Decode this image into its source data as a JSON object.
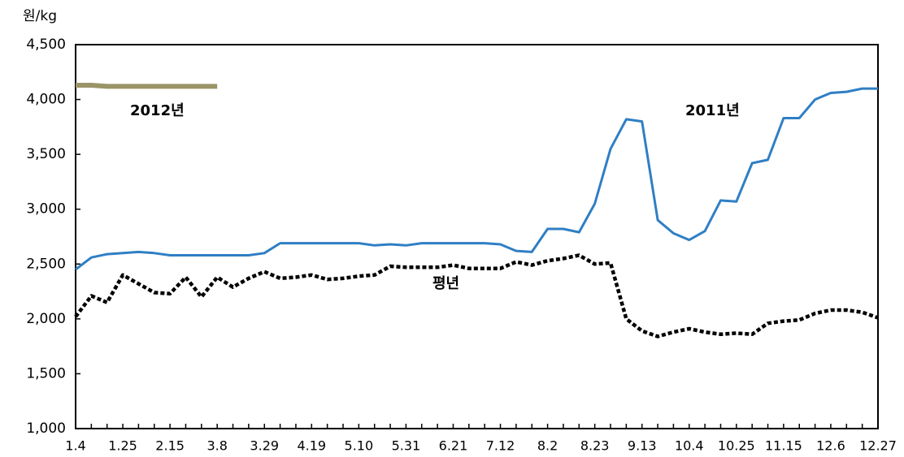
{
  "chart_data": {
    "type": "line",
    "y_unit": "원/kg",
    "categories": [
      "1.4",
      null,
      null,
      "1.25",
      null,
      null,
      "2.15",
      null,
      null,
      "3.8",
      null,
      null,
      "3.29",
      null,
      null,
      "4.19",
      null,
      null,
      "5.10",
      null,
      null,
      "5.31",
      null,
      null,
      "6.21",
      null,
      null,
      "7.12",
      null,
      null,
      "8.2",
      null,
      null,
      "8.23",
      null,
      null,
      "9.13",
      null,
      null,
      "10.4",
      null,
      null,
      "10.25",
      null,
      null,
      "11.15",
      null,
      null,
      "12.6",
      null,
      null,
      "12.27"
    ],
    "series": [
      {
        "name": "2012년",
        "color": "#9a9468",
        "dash": false,
        "values": [
          4130,
          4130,
          4120,
          4120,
          4120,
          4120,
          4120,
          4120,
          4120,
          4120,
          null,
          null,
          null,
          null,
          null,
          null,
          null,
          null,
          null,
          null,
          null,
          null,
          null,
          null,
          null,
          null,
          null,
          null,
          null,
          null,
          null,
          null,
          null,
          null,
          null,
          null,
          null,
          null,
          null,
          null,
          null,
          null,
          null,
          null,
          null,
          null,
          null,
          null,
          null,
          null,
          null,
          null
        ]
      },
      {
        "name": "2011년",
        "color": "#2f7fc4",
        "dash": false,
        "values": [
          2450,
          2560,
          2590,
          2600,
          2610,
          2600,
          2580,
          2580,
          2580,
          2580,
          2580,
          2580,
          2600,
          2690,
          2690,
          2690,
          2690,
          2690,
          2690,
          2670,
          2680,
          2670,
          2690,
          2690,
          2690,
          2690,
          2690,
          2680,
          2620,
          2610,
          2820,
          2820,
          2790,
          3050,
          3550,
          3820,
          3800,
          2900,
          2780,
          2720,
          2800,
          3080,
          3070,
          3420,
          3450,
          3830,
          3830,
          4000,
          4060,
          4070,
          4100,
          4100
        ]
      },
      {
        "name": "평년",
        "color": "#000000",
        "dash": true,
        "values": [
          2020,
          2210,
          2150,
          2400,
          2320,
          2240,
          2230,
          2380,
          2200,
          2380,
          2290,
          2370,
          2430,
          2370,
          2380,
          2400,
          2360,
          2370,
          2390,
          2400,
          2480,
          2470,
          2470,
          2470,
          2490,
          2460,
          2460,
          2460,
          2520,
          2490,
          2530,
          2550,
          2580,
          2500,
          2510,
          2000,
          1890,
          1840,
          1880,
          1910,
          1880,
          1860,
          1870,
          1860,
          1960,
          1980,
          1990,
          2050,
          2080,
          2080,
          2060,
          2010
        ]
      }
    ],
    "ylim": [
      1000,
      4500
    ],
    "yticks": [
      {
        "value": 1000,
        "label": "1,000"
      },
      {
        "value": 1500,
        "label": "1,500"
      },
      {
        "value": 2000,
        "label": "2,000"
      },
      {
        "value": 2500,
        "label": "2,500"
      },
      {
        "value": 3000,
        "label": "3,000"
      },
      {
        "value": 3500,
        "label": "3,500"
      },
      {
        "value": 4000,
        "label": "4,000"
      },
      {
        "value": 4500,
        "label": "4,500"
      }
    ],
    "grid": false
  }
}
